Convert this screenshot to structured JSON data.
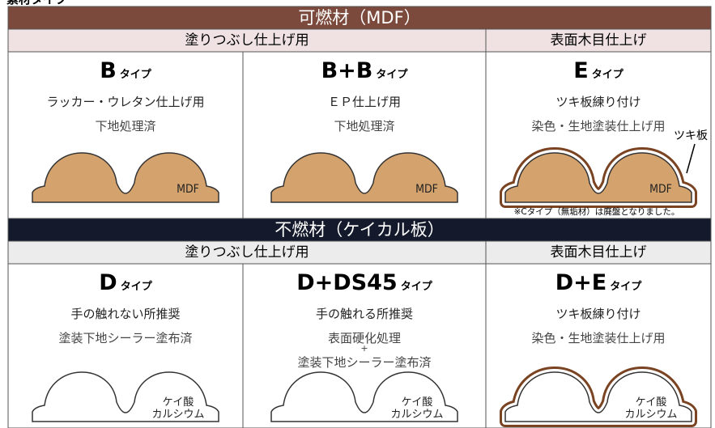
{
  "page_title": "素材タイプ",
  "sections": [
    {
      "title": "可燃材（MDF）",
      "groups": [
        "塗りつぶし仕上げ用",
        "表面木目仕上げ"
      ],
      "cells": [
        {
          "type": "B",
          "suffix": "タイプ",
          "lines": [
            "ラッカー・ウレタン仕上げ用",
            "下地処理済"
          ],
          "material": [
            "MDF"
          ]
        },
        {
          "type": "B+B",
          "suffix": "タイプ",
          "lines": [
            "ＥＰ仕上げ用",
            "下地処理済"
          ],
          "material": [
            "MDF"
          ]
        },
        {
          "type": "E",
          "suffix": "タイプ",
          "lines": [
            "ツキ板練り付け",
            "染色・生地塗装仕上げ用"
          ],
          "material": [
            "MDF"
          ],
          "veneer": "ツキ板",
          "note": "※Cタイプ（無垢材）は廃盤となりました。"
        }
      ]
    },
    {
      "title": "不燃材（ケイカル板）",
      "groups": [
        "塗りつぶし仕上げ用",
        "表面木目仕上げ"
      ],
      "cells": [
        {
          "type": "D",
          "suffix": "タイプ",
          "lines": [
            "手の触れない所推奨",
            "塗装下地シーラー塗布済"
          ],
          "material": [
            "ケイ酸",
            "カルシウム"
          ]
        },
        {
          "type": "D+DS45",
          "suffix": "タイプ",
          "lines": [
            "手の触れる所推奨",
            "表面硬化処理",
            "+",
            "塗装下地シーラー塗布済"
          ],
          "material": [
            "ケイ酸",
            "カルシウム"
          ]
        },
        {
          "type": "D+E",
          "suffix": "タイプ",
          "lines": [
            "ツキ板練り付け",
            "染色・生地塗装仕上げ用"
          ],
          "material": [
            "ケイ酸",
            "カルシウム"
          ]
        }
      ]
    }
  ]
}
